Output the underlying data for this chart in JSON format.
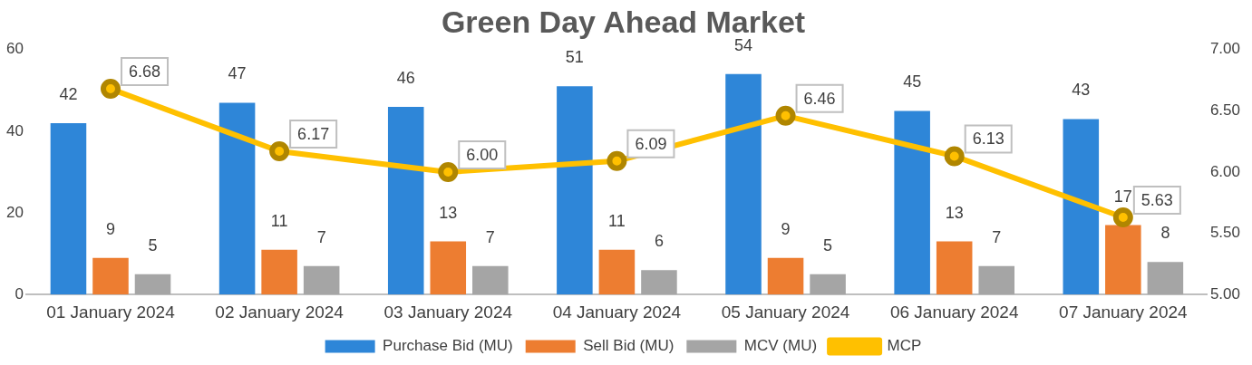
{
  "chart_data": {
    "type": "bar",
    "title": "Green Day Ahead Market",
    "categories": [
      "01 January 2024",
      "02 January 2024",
      "03 January 2024",
      "04 January 2024",
      "05 January 2024",
      "06 January 2024",
      "07 January 2024"
    ],
    "series": [
      {
        "name": "Purchase Bid (MU)",
        "color": "#2e86d8",
        "values": [
          42,
          47,
          46,
          51,
          54,
          45,
          43
        ],
        "value_labels": [
          "42",
          "47",
          "46",
          "51",
          "54",
          "45",
          "43"
        ]
      },
      {
        "name": "Sell Bid (MU)",
        "color": "#ed7d31",
        "values": [
          9,
          11,
          13,
          11,
          9,
          13,
          17
        ],
        "value_labels": [
          "9",
          "11",
          "13",
          "11",
          "9",
          "13",
          "17"
        ]
      },
      {
        "name": "MCV (MU)",
        "color": "#a5a5a5",
        "values": [
          5,
          7,
          7,
          6,
          5,
          7,
          8
        ],
        "value_labels": [
          "5",
          "7",
          "7",
          "6",
          "5",
          "7",
          "8"
        ]
      },
      {
        "name": "MCP",
        "type": "line",
        "axis": "y2",
        "color": "#ffc000",
        "values": [
          6.68,
          6.17,
          6.0,
          6.09,
          6.46,
          6.13,
          5.63
        ],
        "value_labels": [
          "6.68",
          "6.17",
          "6.00",
          "6.09",
          "6.46",
          "6.13",
          "5.63"
        ]
      }
    ],
    "ylim": [
      0,
      60
    ],
    "yticks": [
      0,
      20,
      40,
      60
    ],
    "y2lim": [
      5,
      7
    ],
    "y2ticks": [
      {
        "value": 5,
        "label": "5.00"
      },
      {
        "value": 5.5,
        "label": "5.50"
      },
      {
        "value": 6,
        "label": "6.00"
      },
      {
        "value": 6.5,
        "label": "6.50"
      },
      {
        "value": 7,
        "label": "7.00"
      }
    ],
    "grid": false,
    "legend": "bottom",
    "marker": "circle",
    "line_style": "solid"
  }
}
